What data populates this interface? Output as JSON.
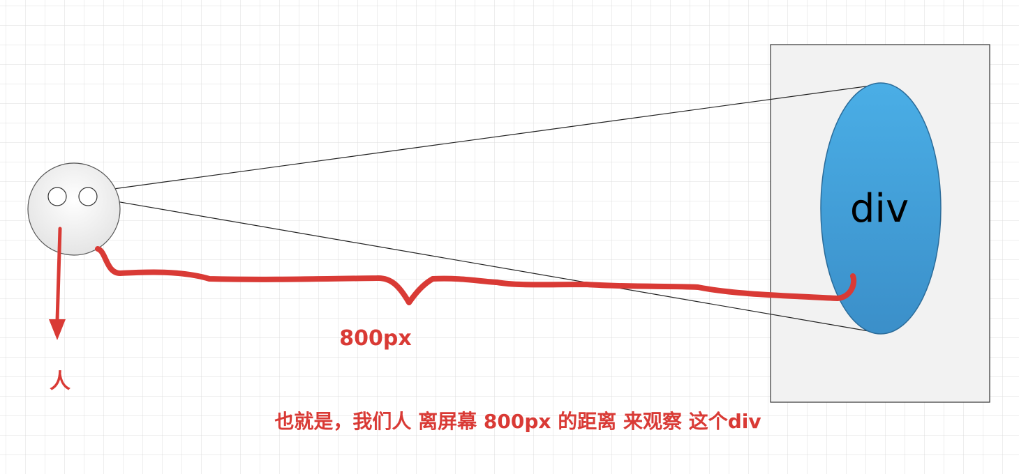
{
  "screen": {
    "label": "div"
  },
  "annotations": {
    "distance": "800px",
    "person": "人",
    "caption": "也就是，我们人 离屏幕 800px 的距离 来观察 这个div"
  },
  "colors": {
    "grid_line": "#d9d9d9",
    "ellipse_fill": "#45a3dc",
    "annotation_red": "#d93a35",
    "screen_fill": "#f2f2f2"
  }
}
